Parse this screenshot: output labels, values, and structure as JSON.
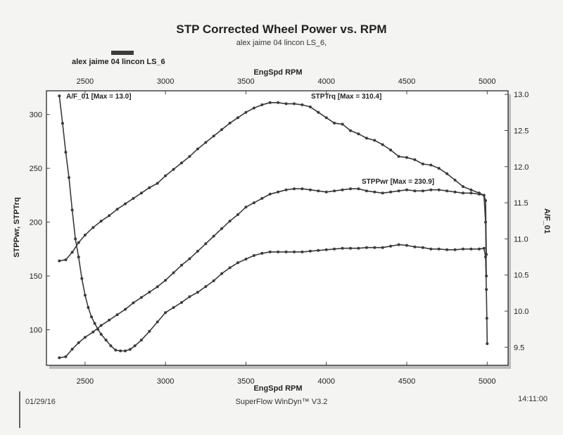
{
  "header": {
    "title": "STP Corrected Wheel Power vs. RPM",
    "subtitle": "alex jaime 04 lincon LS_6,",
    "legend_run": "alex jaime 04 lincon LS_6"
  },
  "footer": {
    "date": "01/29/16",
    "software": "SuperFlow WinDyn™ V3.2",
    "time": "14:11:00"
  },
  "colors": {
    "trace": "#3a3a3a",
    "legend_swatch": "#3c3c3c",
    "paper": "#f4f4f2"
  },
  "chart_data": {
    "type": "line",
    "title": "STP Corrected Wheel Power vs. RPM",
    "subtitle": "alex jaime 04 lincon LS_6,",
    "xlabel": "EngSpd  RPM",
    "xlabel_bottom": "EngSpd  RPM",
    "ylabel_left": "STPPwr, STPTrq",
    "ylabel_right": "A/F_01",
    "xlim": [
      2260,
      5130
    ],
    "ylim_left": [
      67,
      322
    ],
    "ylim_right": [
      9.25,
      13.05
    ],
    "x_ticks": [
      2500,
      3000,
      3500,
      4000,
      4500,
      5000
    ],
    "x_tick_labels": [
      "2500",
      "3000",
      "3500",
      "4000",
      "4500",
      "5000"
    ],
    "y_left_ticks": [
      100,
      150,
      200,
      250,
      300
    ],
    "y_left_tick_labels": [
      "100",
      "150",
      "200",
      "250",
      "300"
    ],
    "y_right_ticks": [
      9.5,
      10.0,
      10.5,
      11.0,
      11.5,
      12.0,
      12.5,
      13.0
    ],
    "y_right_tick_labels": [
      "9.5",
      "10.0",
      "10.5",
      "11.0",
      "11.5",
      "12.0",
      "12.5",
      "13.0"
    ],
    "grid": false,
    "legend": "top-left",
    "series": [
      {
        "name": "STPTrq",
        "axis": "left",
        "annotation": "STPTrq [Max = 310.4]",
        "x": [
          2340,
          2380,
          2420,
          2460,
          2500,
          2550,
          2600,
          2650,
          2700,
          2750,
          2800,
          2850,
          2900,
          2950,
          3000,
          3050,
          3100,
          3150,
          3200,
          3250,
          3300,
          3350,
          3400,
          3450,
          3500,
          3550,
          3600,
          3650,
          3700,
          3750,
          3800,
          3850,
          3900,
          3950,
          4000,
          4050,
          4100,
          4150,
          4200,
          4250,
          4300,
          4350,
          4400,
          4450,
          4500,
          4550,
          4600,
          4650,
          4700,
          4750,
          4800,
          4850,
          4900,
          4950,
          4980,
          4990,
          4995
        ],
        "values": [
          164,
          165,
          172,
          181,
          188,
          195,
          201,
          206,
          212,
          217,
          222,
          227,
          232,
          236,
          243,
          249,
          255,
          261,
          268,
          274,
          280,
          286,
          292,
          297,
          302,
          306,
          309,
          311,
          311,
          310,
          310,
          309,
          307,
          302,
          297,
          292,
          291,
          285,
          282,
          278,
          276,
          272,
          267,
          261,
          260,
          258,
          254,
          253,
          250,
          245,
          239,
          233,
          230,
          227,
          225,
          220,
          170
        ]
      },
      {
        "name": "STPPwr",
        "axis": "left",
        "annotation": "STPPwr [Max = 230.9]",
        "x": [
          2340,
          2380,
          2420,
          2460,
          2500,
          2550,
          2600,
          2650,
          2700,
          2750,
          2800,
          2850,
          2900,
          2950,
          3000,
          3050,
          3100,
          3150,
          3200,
          3250,
          3300,
          3350,
          3400,
          3450,
          3500,
          3550,
          3600,
          3650,
          3700,
          3750,
          3800,
          3850,
          3900,
          3950,
          4000,
          4050,
          4100,
          4150,
          4200,
          4250,
          4300,
          4350,
          4400,
          4450,
          4500,
          4550,
          4600,
          4650,
          4700,
          4750,
          4800,
          4850,
          4900,
          4950,
          4980,
          4990,
          4995
        ],
        "values": [
          74,
          75,
          82,
          88,
          93,
          98,
          104,
          109,
          114,
          119,
          125,
          130,
          135,
          140,
          146,
          153,
          160,
          166,
          173,
          180,
          187,
          194,
          201,
          207,
          214,
          218,
          222,
          226,
          228,
          230,
          231,
          231,
          230,
          229,
          228,
          229,
          230,
          231,
          231,
          229,
          228,
          227,
          228,
          229,
          230,
          229,
          229,
          230,
          230,
          229,
          228,
          227,
          227,
          226,
          225,
          200,
          150
        ]
      },
      {
        "name": "A/F_01",
        "axis": "right",
        "annotation": "A/F_01 [Max = 13.0]",
        "x": [
          2340,
          2360,
          2380,
          2400,
          2420,
          2440,
          2460,
          2480,
          2500,
          2520,
          2540,
          2560,
          2580,
          2600,
          2630,
          2660,
          2690,
          2720,
          2750,
          2780,
          2810,
          2850,
          2900,
          2950,
          3000,
          3050,
          3100,
          3150,
          3200,
          3250,
          3300,
          3350,
          3400,
          3450,
          3500,
          3550,
          3600,
          3650,
          3700,
          3750,
          3800,
          3850,
          3900,
          3950,
          4000,
          4050,
          4100,
          4150,
          4200,
          4250,
          4300,
          4350,
          4400,
          4450,
          4500,
          4550,
          4600,
          4650,
          4700,
          4750,
          4800,
          4850,
          4900,
          4950,
          4980,
          4990,
          4995,
          4998,
          5000
        ],
        "values": [
          12.98,
          12.6,
          12.2,
          11.85,
          11.4,
          11.0,
          10.75,
          10.45,
          10.22,
          10.05,
          9.92,
          9.83,
          9.75,
          9.68,
          9.6,
          9.52,
          9.46,
          9.45,
          9.45,
          9.47,
          9.52,
          9.6,
          9.72,
          9.85,
          9.98,
          10.05,
          10.12,
          10.2,
          10.26,
          10.34,
          10.42,
          10.52,
          10.6,
          10.67,
          10.72,
          10.77,
          10.8,
          10.82,
          10.82,
          10.82,
          10.82,
          10.82,
          10.83,
          10.84,
          10.85,
          10.86,
          10.87,
          10.87,
          10.87,
          10.88,
          10.88,
          10.88,
          10.9,
          10.92,
          10.91,
          10.89,
          10.88,
          10.86,
          10.86,
          10.85,
          10.85,
          10.86,
          10.86,
          10.86,
          10.87,
          10.75,
          10.3,
          9.9,
          9.55
        ]
      }
    ]
  }
}
